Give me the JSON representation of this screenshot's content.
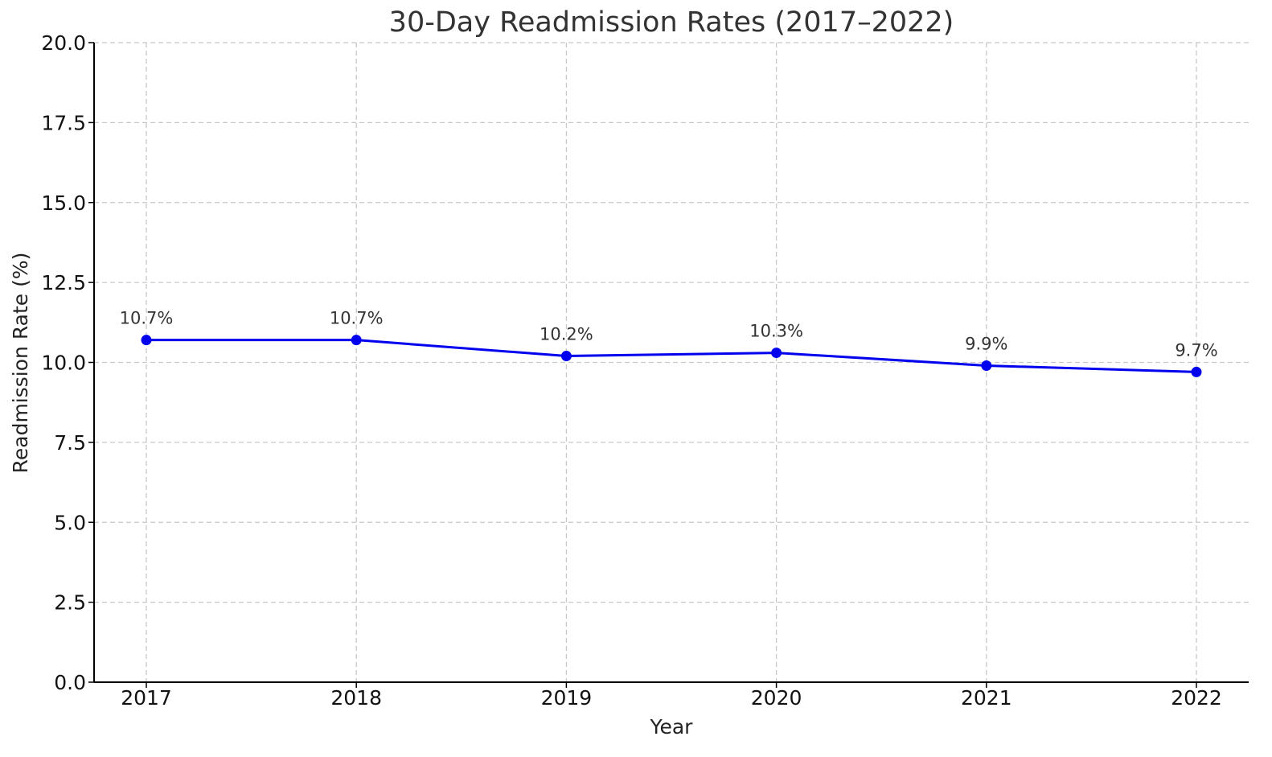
{
  "chart_data": {
    "type": "line",
    "title": "30-Day Readmission Rates (2017–2022)",
    "xlabel": "Year",
    "ylabel": "Readmission Rate (%)",
    "categories": [
      "2017",
      "2018",
      "2019",
      "2020",
      "2021",
      "2022"
    ],
    "series": [
      {
        "values": [
          10.7,
          10.7,
          10.2,
          10.3,
          9.9,
          9.7
        ],
        "data_labels": [
          "10.7%",
          "10.7%",
          "10.2%",
          "10.3%",
          "9.9%",
          "9.7%"
        ],
        "color": "#0000ee",
        "marker": "circle"
      }
    ],
    "ylim": [
      0,
      20
    ],
    "yticks": [
      0,
      2.5,
      5,
      7.5,
      10,
      12.5,
      15,
      17.5,
      20
    ],
    "ytick_labels": [
      "0.0",
      "2.5",
      "5.0",
      "7.5",
      "10.0",
      "12.5",
      "15.0",
      "17.5",
      "20.0"
    ],
    "grid": true,
    "grid_style": "dashed"
  }
}
